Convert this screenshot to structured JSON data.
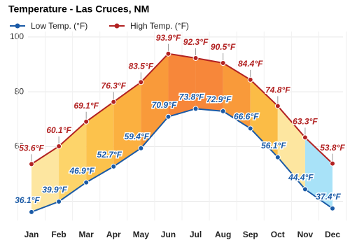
{
  "chart_data": {
    "type": "line",
    "title": "Temperature - Las Cruces, NM",
    "categories": [
      "Jan",
      "Feb",
      "Mar",
      "Apr",
      "May",
      "Jun",
      "Jul",
      "Aug",
      "Sep",
      "Oct",
      "Nov",
      "Dec"
    ],
    "series": [
      {
        "name": "Low Temp. (°F)",
        "color": "#1a5aa6",
        "values": [
          36.1,
          39.9,
          46.9,
          52.7,
          59.4,
          70.9,
          73.8,
          72.9,
          66.6,
          56.1,
          44.4,
          37.4
        ],
        "value_labels": [
          "36.1°F",
          "39.9°F",
          "46.9°F",
          "52.7°F",
          "59.4°F",
          "70.9°F",
          "73.8°F",
          "72.9°F",
          "66.6°F",
          "56.1°F",
          "44.4°F",
          "37.4°F"
        ]
      },
      {
        "name": "High Temp. (°F)",
        "color": "#b22222",
        "values": [
          53.6,
          60.1,
          69.1,
          76.3,
          83.5,
          93.9,
          92.3,
          90.5,
          84.4,
          74.8,
          63.3,
          53.8
        ],
        "value_labels": [
          "53.6°F",
          "60.1°F",
          "69.1°F",
          "76.3°F",
          "83.5°F",
          "93.9°F",
          "92.3°F",
          "90.5°F",
          "84.4°F",
          "74.8°F",
          "63.3°F",
          "53.8°F"
        ]
      }
    ],
    "fill_colors": [
      "#fde6a0",
      "#fdd46a",
      "#fcc24c",
      "#fbb040",
      "#f99a3a",
      "#f7873a",
      "#f7873a",
      "#f99a3a",
      "#fbbc46",
      "#fde6a0",
      "#a8e2f8"
    ],
    "ylim": [
      33,
      102
    ],
    "yticks": [
      40,
      60,
      80,
      100
    ],
    "grid": true
  }
}
